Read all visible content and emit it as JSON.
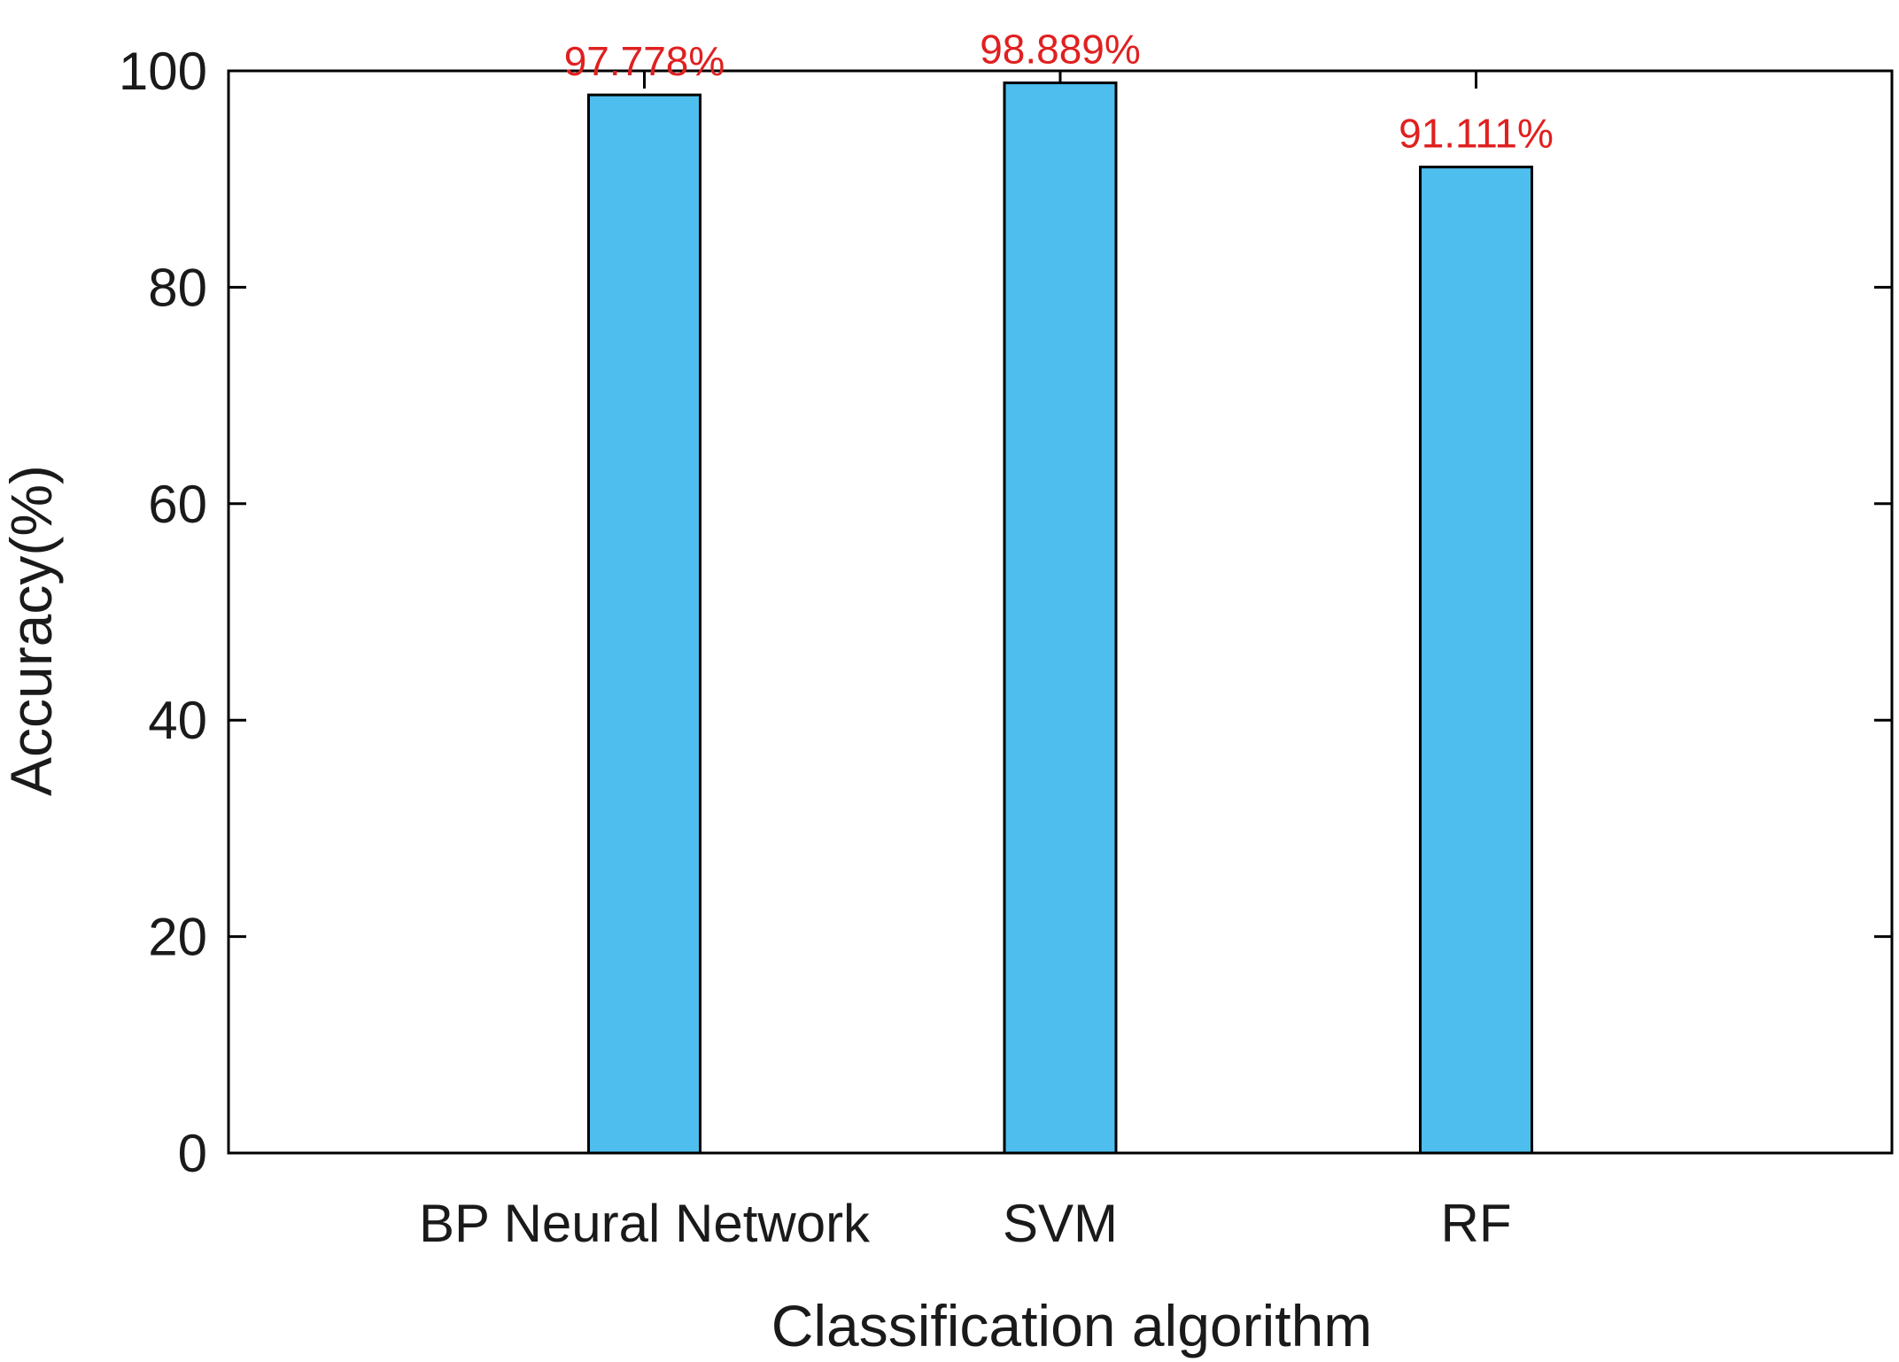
{
  "chart_data": {
    "type": "bar",
    "title": "",
    "xlabel": "Classification algorithm",
    "ylabel": "Accuracy(%)",
    "categories": [
      "BP Neural Network",
      "SVM",
      "RF"
    ],
    "values": [
      97.778,
      98.889,
      91.111
    ],
    "data_labels": [
      "97.778%",
      "98.889%",
      "91.111%"
    ],
    "ylim": [
      0,
      100
    ],
    "yticks": [
      0,
      20,
      40,
      60,
      80,
      100
    ],
    "grid": false,
    "legend": "none",
    "colors": {
      "bar_fill": "#4DBEEE",
      "bar_stroke": "#000000",
      "data_label": "#E02020",
      "axis": "#000000"
    }
  }
}
